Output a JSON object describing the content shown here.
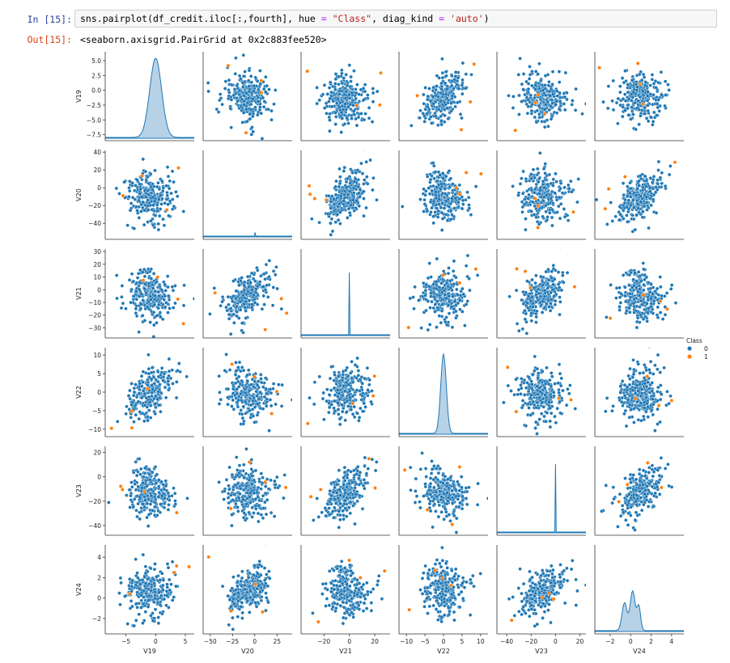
{
  "input_cell": {
    "prompt": "In [15]:",
    "code": {
      "p1": "sns.pairplot(df_credit.iloc[:,fourth], hue ",
      "p2": "=",
      "p3": " ",
      "p4": "\"Class\"",
      "p5": ", diag_kind ",
      "p6": "=",
      "p7": " ",
      "p8": "'auto'",
      "p9": ")"
    }
  },
  "output_cell": {
    "prompt": "Out[15]:",
    "text": "<seaborn.axisgrid.PairGrid at 0x2c883fee520>"
  },
  "colors": {
    "class_0": "#1f77b4",
    "class_1": "#ff7f0e",
    "kde_fill": "#9fc3df"
  },
  "chart_data": {
    "type": "scatter",
    "title": "",
    "variables": [
      "V19",
      "V20",
      "V21",
      "V22",
      "V23",
      "V24"
    ],
    "diag_kind": "kde",
    "legend": {
      "title": "Class",
      "placement": "right",
      "entries": [
        {
          "label": "0",
          "color": "#1f77b4"
        },
        {
          "label": "1",
          "color": "#ff7f0e"
        }
      ]
    },
    "axes": {
      "V19": {
        "lim": [
          -8.5,
          6.5
        ],
        "ticks": [
          -5,
          0,
          5
        ],
        "row_ticks": [
          -7.5,
          -5.0,
          -2.5,
          0.0,
          2.5,
          5.0
        ],
        "row_tick_labels": [
          "−7.5",
          "−5.0",
          "−2.5",
          "0.0",
          "2.5",
          "5.0"
        ],
        "col_tick_labels": [
          "−5",
          "0",
          "5"
        ]
      },
      "V20": {
        "lim": [
          -58,
          42
        ],
        "ticks": [
          -40,
          -20,
          0,
          20,
          40
        ],
        "col_ticks": [
          -50,
          -25,
          0,
          25
        ],
        "row_tick_labels": [
          "−40",
          "−20",
          "0",
          "20",
          "40"
        ],
        "col_tick_labels": [
          "−50",
          "−25",
          "0",
          "25"
        ]
      },
      "V21": {
        "lim": [
          -38,
          32
        ],
        "ticks": [
          -30,
          -20,
          -10,
          0,
          10,
          20,
          30
        ],
        "col_ticks": [
          -20,
          0,
          20
        ],
        "row_tick_labels": [
          "−30",
          "−20",
          "−10",
          "0",
          "10",
          "20",
          "30"
        ],
        "col_tick_labels": [
          "−20",
          "0",
          "20"
        ]
      },
      "V22": {
        "lim": [
          -12,
          12
        ],
        "ticks": [
          -10,
          -5,
          0,
          5,
          10
        ],
        "row_tick_labels": [
          "−10",
          "−5",
          "0",
          "5",
          "10"
        ],
        "col_tick_labels": [
          "−10",
          "−5",
          "0",
          "5",
          "10"
        ]
      },
      "V23": {
        "lim": [
          -48,
          25
        ],
        "ticks": [
          -40,
          -20,
          0,
          20
        ],
        "row_tick_labels": [
          "−40",
          "−20",
          "0",
          "20"
        ],
        "col_tick_labels": [
          "−40",
          "−20",
          "0",
          "20"
        ]
      },
      "V24": {
        "lim": [
          -3.5,
          5.2
        ],
        "ticks": [
          -2,
          0,
          2,
          4
        ],
        "row_tick_labels": [
          "−2",
          "0",
          "2",
          "4"
        ],
        "col_tick_labels": [
          "−2",
          "0",
          "2",
          "4"
        ]
      }
    },
    "marginals": {
      "V19": {
        "mean": 0.0,
        "sd": 1.0
      },
      "V20": {
        "mean": 0.0,
        "sd": 0.9
      },
      "V21": {
        "mean": 0.0,
        "sd": 0.8
      },
      "V22": {
        "mean": 0.0,
        "sd": 0.75
      },
      "V23": {
        "mean": 0.0,
        "sd": 0.7
      },
      "V24": {
        "mean": 0.1,
        "sd": 0.6
      }
    }
  }
}
